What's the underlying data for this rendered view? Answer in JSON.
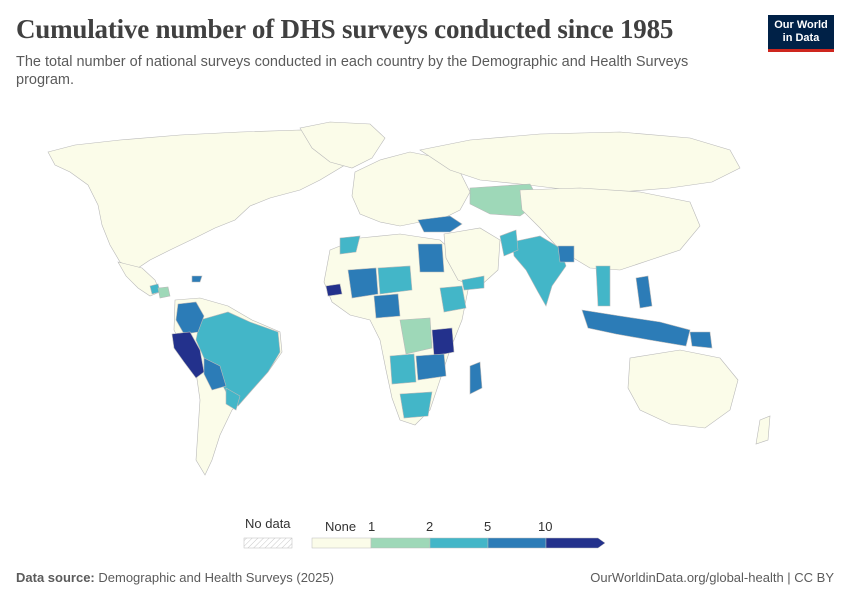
{
  "header": {
    "title": "Cumulative number of DHS surveys conducted since 1985",
    "subtitle": "The total number of national surveys conducted in each country by the Demographic and Health Surveys program."
  },
  "logo": {
    "line1": "Our World",
    "line2": "in Data"
  },
  "legend": {
    "no_data_label": "No data",
    "bins": [
      {
        "label": "None",
        "color": "#fbfce9"
      },
      {
        "label": "1",
        "color": "#9ed8b8"
      },
      {
        "label": "2",
        "color": "#43b6c8"
      },
      {
        "label": "5",
        "color": "#2c7cb7"
      },
      {
        "label": "10",
        "color": "#23318c"
      }
    ]
  },
  "colors": {
    "no_data": "#eeeeee",
    "none": "#fbfce9",
    "bin_1_2": "#9ed8b8",
    "bin_2_5": "#43b6c8",
    "bin_5_10": "#2c7cb7",
    "bin_10_plus": "#23318c",
    "border": "#b9b9b9"
  },
  "footer": {
    "source_label": "Data source:",
    "source_value": "Demographic and Health Surveys (2025)",
    "url": "OurWorldinData.org/global-health | CC BY"
  }
}
